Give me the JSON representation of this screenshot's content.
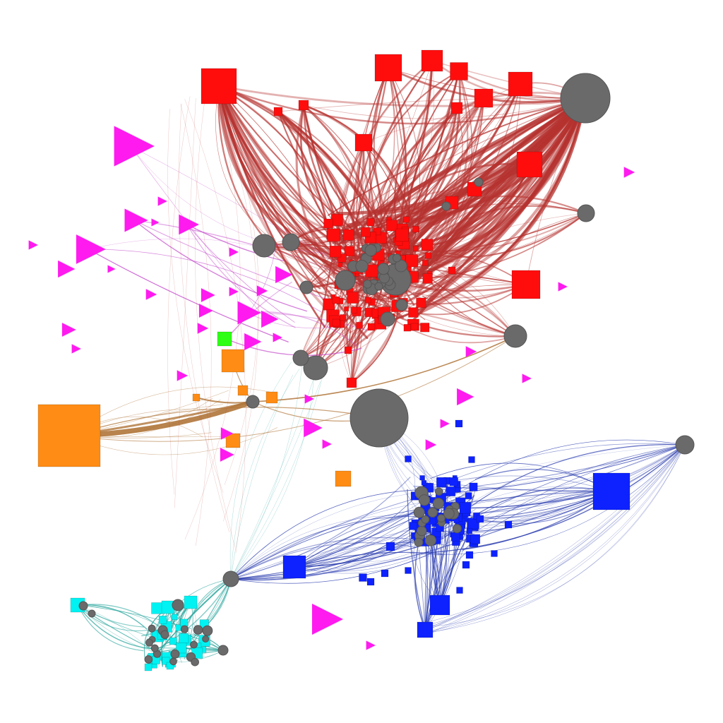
{
  "graph": {
    "colors": {
      "background": "#ffffff",
      "red_cluster": "#ff0d0d",
      "red_edges": "#b5322f",
      "blue_cluster": "#0d22ff",
      "blue_edges": "#2d3fb0",
      "cyan_cluster": "#00f2f2",
      "cyan_edges": "#2fa8a0",
      "orange_cluster": "#ff8c14",
      "orange_edges": "#b0763a",
      "magenta_cluster": "#ff1aef",
      "magenta_edges": "#c040c8",
      "green_node": "#2eff14",
      "hub_gray": "#6a6a6a"
    },
    "clusters": [
      {
        "id": "red",
        "node_shape": "square",
        "color_key": "red_cluster"
      },
      {
        "id": "blue",
        "node_shape": "square",
        "color_key": "blue_cluster"
      },
      {
        "id": "cyan",
        "node_shape": "square",
        "color_key": "cyan_cluster"
      },
      {
        "id": "orange",
        "node_shape": "square",
        "color_key": "orange_cluster"
      },
      {
        "id": "magenta",
        "node_shape": "triangle",
        "color_key": "magenta_cluster"
      },
      {
        "id": "green",
        "node_shape": "square",
        "color_key": "green_node"
      },
      {
        "id": "hubs",
        "node_shape": "circle",
        "color_key": "hub_gray"
      }
    ]
  }
}
